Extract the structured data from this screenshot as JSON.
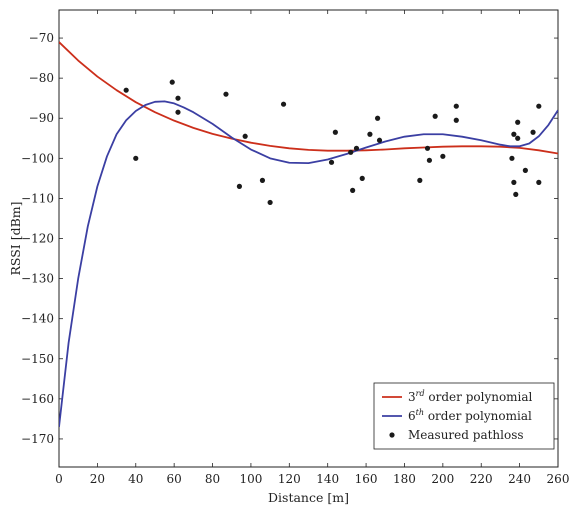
{
  "chart_data": {
    "type": "scatter",
    "xlabel": "Distance [m]",
    "ylabel": "RSSI [dBm]",
    "xlim": [
      0,
      260
    ],
    "ylim": [
      -177,
      -63
    ],
    "xticks": [
      0,
      20,
      40,
      60,
      80,
      100,
      120,
      140,
      160,
      180,
      200,
      220,
      240,
      260
    ],
    "yticks": [
      -70,
      -80,
      -90,
      -100,
      -110,
      -120,
      -130,
      -140,
      -150,
      -160,
      -170
    ],
    "grid": false,
    "legend_position": "bottom-right",
    "series": [
      {
        "name": "3rd order polynomial",
        "legend_base": "3",
        "legend_sup": "rd",
        "legend_rest": " order polynomial",
        "kind": "line",
        "color": "#cc2f1b",
        "x": [
          0,
          10,
          20,
          30,
          40,
          50,
          60,
          70,
          80,
          90,
          100,
          110,
          120,
          130,
          140,
          150,
          160,
          170,
          180,
          190,
          200,
          210,
          220,
          230,
          240,
          250,
          260
        ],
        "y": [
          -71,
          -75.6,
          -79.6,
          -83,
          -86,
          -88.5,
          -90.6,
          -92.4,
          -93.9,
          -95.1,
          -96.1,
          -96.9,
          -97.5,
          -97.9,
          -98.1,
          -98.1,
          -98.0,
          -97.8,
          -97.5,
          -97.3,
          -97.1,
          -97.0,
          -97.0,
          -97.1,
          -97.4,
          -98.0,
          -98.8
        ]
      },
      {
        "name": "6th order polynomial",
        "legend_base": "6",
        "legend_sup": "th",
        "legend_rest": " order polynomial",
        "kind": "line",
        "color": "#3b3fa3",
        "x": [
          0,
          5,
          10,
          15,
          20,
          25,
          30,
          35,
          40,
          45,
          50,
          55,
          60,
          65,
          70,
          80,
          90,
          100,
          110,
          120,
          130,
          140,
          150,
          160,
          170,
          180,
          190,
          200,
          210,
          220,
          230,
          235,
          240,
          245,
          250,
          255,
          260
        ],
        "y": [
          -167,
          -146,
          -130,
          -117,
          -107,
          -99.5,
          -94,
          -90.5,
          -88.2,
          -86.7,
          -85.9,
          -85.8,
          -86.3,
          -87.3,
          -88.5,
          -91.4,
          -94.8,
          -97.8,
          -100.0,
          -101.1,
          -101.2,
          -100.3,
          -98.9,
          -97.3,
          -95.8,
          -94.6,
          -94.0,
          -94.0,
          -94.6,
          -95.5,
          -96.6,
          -97.0,
          -97.0,
          -96.3,
          -94.5,
          -91.7,
          -88
        ]
      },
      {
        "name": "Measured pathloss",
        "kind": "points",
        "color": "#1a1a1a",
        "points": [
          [
            35,
            -83
          ],
          [
            40,
            -100
          ],
          [
            59,
            -81
          ],
          [
            62,
            -85
          ],
          [
            62,
            -88.5
          ],
          [
            87,
            -84
          ],
          [
            94,
            -107
          ],
          [
            97,
            -94.5
          ],
          [
            106,
            -105.5
          ],
          [
            110,
            -111
          ],
          [
            117,
            -86.5
          ],
          [
            142,
            -101
          ],
          [
            144,
            -93.5
          ],
          [
            152,
            -98.5
          ],
          [
            153,
            -108
          ],
          [
            155,
            -97.5
          ],
          [
            158,
            -105
          ],
          [
            162,
            -94
          ],
          [
            166,
            -90
          ],
          [
            167,
            -95.5
          ],
          [
            188,
            -105.5
          ],
          [
            192,
            -97.5
          ],
          [
            193,
            -100.5
          ],
          [
            196,
            -89.5
          ],
          [
            200,
            -99.5
          ],
          [
            207,
            -87
          ],
          [
            207,
            -90.5
          ],
          [
            236,
            -100
          ],
          [
            237,
            -94
          ],
          [
            237,
            -106
          ],
          [
            238,
            -109
          ],
          [
            239,
            -91
          ],
          [
            239,
            -95
          ],
          [
            243,
            -103
          ],
          [
            247,
            -93.5
          ],
          [
            250,
            -87
          ],
          [
            250,
            -106
          ]
        ]
      }
    ]
  }
}
